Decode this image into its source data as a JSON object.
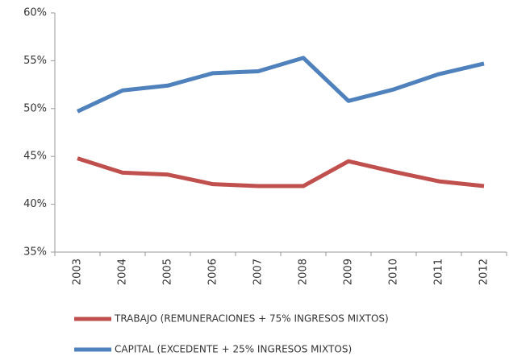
{
  "chart_data": {
    "type": "line",
    "categories": [
      "2003",
      "2004",
      "2005",
      "2006",
      "2007",
      "2008",
      "2009",
      "2010",
      "2011",
      "2012"
    ],
    "series": [
      {
        "name": "TRABAJO (REMUNERACIONES + 75% INGRESOS MIXTOS)",
        "color": "#c0504d",
        "values": [
          44.8,
          43.3,
          43.1,
          42.1,
          41.9,
          41.9,
          44.5,
          43.4,
          42.4,
          41.9
        ]
      },
      {
        "name": "CAPITAL (EXCEDENTE + 25% INGRESOS MIXTOS)",
        "color": "#4f81bd",
        "values": [
          49.7,
          51.9,
          52.4,
          53.7,
          53.9,
          55.3,
          50.8,
          52.0,
          53.6,
          54.7
        ]
      }
    ],
    "ylim": [
      35,
      60
    ],
    "yticks": [
      {
        "value": 35,
        "label": "35%"
      },
      {
        "value": 40,
        "label": "40%"
      },
      {
        "value": 45,
        "label": "45%"
      },
      {
        "value": 50,
        "label": "50%"
      },
      {
        "value": 55,
        "label": "55%"
      },
      {
        "value": 60,
        "label": "60%"
      }
    ],
    "grid": false
  }
}
